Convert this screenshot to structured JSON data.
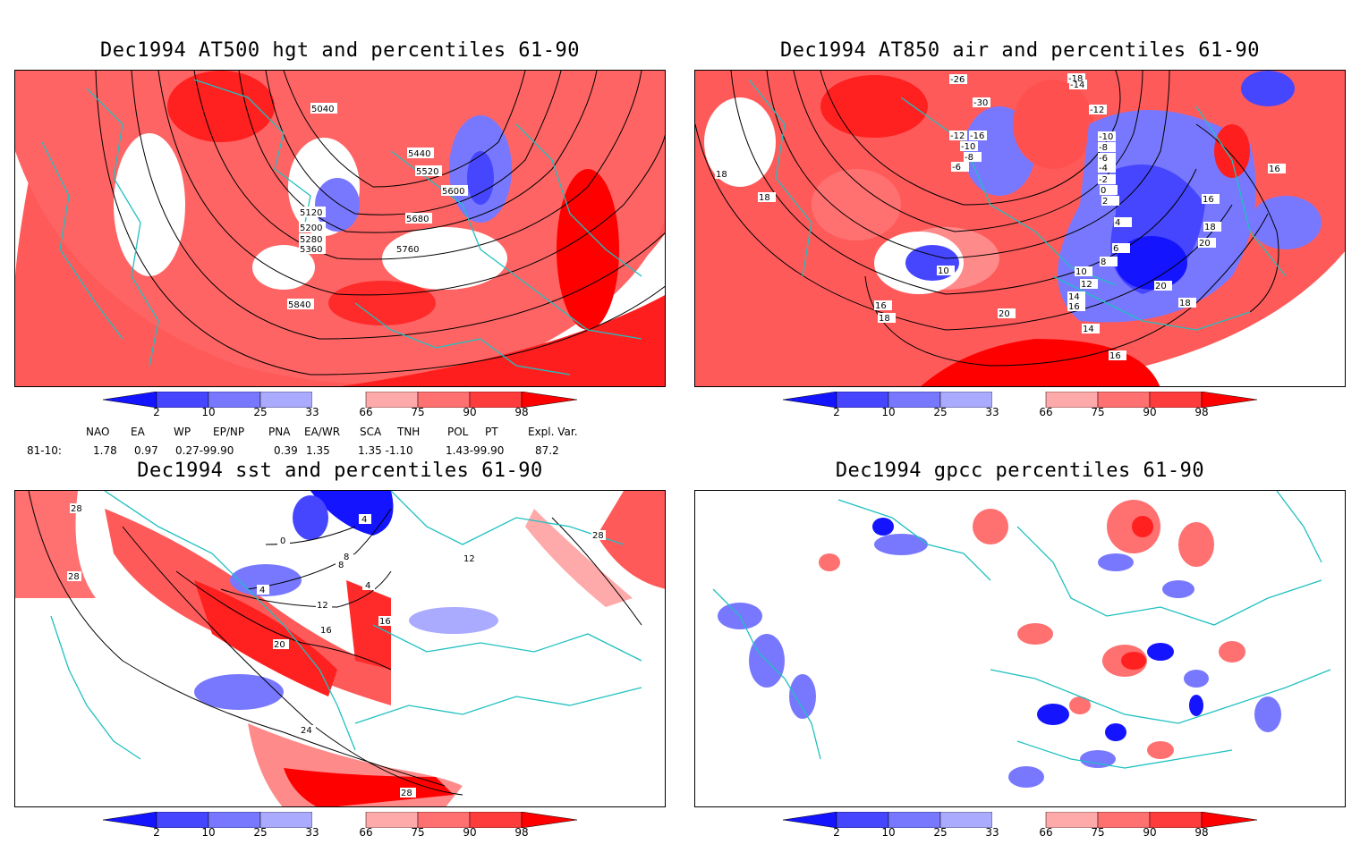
{
  "panels": [
    {
      "title": "Dec1994 AT500 hgt and percentiles 61-90",
      "contour_labels": [
        "5040",
        "5120",
        "5200",
        "5280",
        "5360",
        "5440",
        "5520",
        "5600",
        "5680",
        "5760",
        "5840"
      ]
    },
    {
      "title": "Dec1994 AT850 air and percentiles 61-90",
      "contour_labels": [
        "-26",
        "-18",
        "-14",
        "-12",
        "-30",
        "-12",
        "-16",
        "-10",
        "-8",
        "-6",
        "-10",
        "-8",
        "-6",
        "-4",
        "-2",
        "0",
        "2",
        "4",
        "6",
        "8",
        "10",
        "12",
        "14",
        "16",
        "20",
        "18",
        "20",
        "16",
        "16",
        "18",
        "10",
        "14",
        "18",
        "16",
        "18",
        "20",
        "16",
        "18"
      ]
    },
    {
      "title": "Dec1994 sst and percentiles 61-90",
      "contour_labels": [
        "28",
        "28",
        "28",
        "0",
        "4",
        "8",
        "4",
        "12",
        "8",
        "4",
        "16",
        "20",
        "16",
        "24",
        "28",
        "12"
      ]
    },
    {
      "title": "Dec1994 gpcc percentiles 61-90",
      "contour_labels": []
    }
  ],
  "colorbar": {
    "labels": [
      "2",
      "10",
      "25",
      "33",
      "66",
      "75",
      "90",
      "98"
    ],
    "colors": [
      "#1414ff",
      "#4646ff",
      "#7878ff",
      "#aaaaff",
      "#ffffff",
      "#ffaaaa",
      "#ff7070",
      "#ff3c3c",
      "#ff0000"
    ]
  },
  "indices": {
    "headers": [
      "NAO",
      "EA",
      "WP",
      "EP/NP",
      "PNA",
      "EA/WR",
      "SCA",
      "TNH",
      "POL",
      "PT",
      "Expl. Var."
    ],
    "row_label": "81-10:",
    "values": [
      "1.78",
      "0.97",
      "0.27-99.90",
      "0.39",
      "1.35",
      "1.35 -1.10",
      "1.43-99.90",
      "87.2"
    ]
  },
  "colors": {
    "coast": "#20c0c0",
    "contour": "#000000"
  }
}
